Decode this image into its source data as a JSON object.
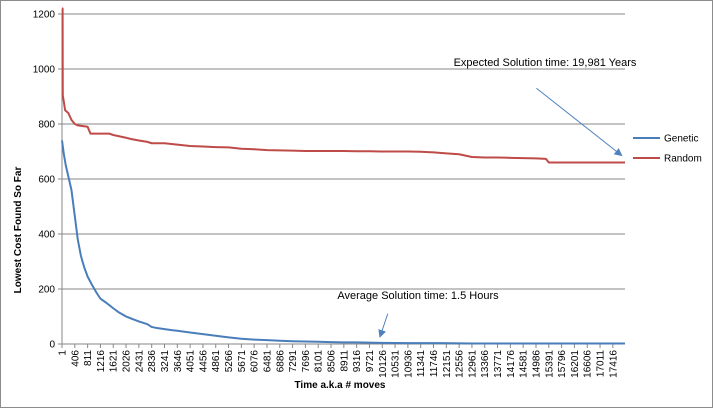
{
  "chart_data": {
    "type": "line",
    "title": "",
    "xlabel": "Time a.k.a # moves",
    "ylabel": "Lowest Cost Found So Far",
    "ylim": [
      0,
      1200
    ],
    "xlim": [
      1,
      17800
    ],
    "grid": true,
    "legend_position": "right",
    "y_ticks": [
      "0",
      "200",
      "400",
      "600",
      "800",
      "1000",
      "1200"
    ],
    "x_ticks": [
      "1",
      "406",
      "811",
      "1216",
      "1621",
      "2026",
      "2431",
      "2836",
      "3241",
      "3646",
      "4051",
      "4456",
      "4861",
      "5266",
      "5671",
      "6076",
      "6481",
      "6886",
      "7291",
      "7696",
      "8101",
      "8506",
      "8911",
      "9316",
      "9721",
      "10126",
      "10531",
      "10936",
      "11341",
      "11746",
      "12151",
      "12556",
      "12961",
      "13366",
      "13771",
      "14176",
      "14581",
      "14986",
      "15391",
      "15796",
      "16201",
      "16606",
      "17011",
      "17416"
    ],
    "series": [
      {
        "name": "Genetic",
        "color": "#4a7ebb",
        "points": [
          [
            1,
            740
          ],
          [
            60,
            690
          ],
          [
            120,
            650
          ],
          [
            200,
            610
          ],
          [
            300,
            560
          ],
          [
            400,
            470
          ],
          [
            500,
            380
          ],
          [
            600,
            320
          ],
          [
            700,
            280
          ],
          [
            811,
            245
          ],
          [
            950,
            215
          ],
          [
            1100,
            185
          ],
          [
            1216,
            165
          ],
          [
            1400,
            150
          ],
          [
            1621,
            130
          ],
          [
            1800,
            115
          ],
          [
            2026,
            100
          ],
          [
            2200,
            92
          ],
          [
            2431,
            82
          ],
          [
            2700,
            72
          ],
          [
            2836,
            62
          ],
          [
            3000,
            58
          ],
          [
            3241,
            54
          ],
          [
            3500,
            50
          ],
          [
            3646,
            48
          ],
          [
            4051,
            42
          ],
          [
            4456,
            36
          ],
          [
            4861,
            30
          ],
          [
            5266,
            24
          ],
          [
            5671,
            19
          ],
          [
            6076,
            16
          ],
          [
            6481,
            14
          ],
          [
            6886,
            12
          ],
          [
            7291,
            10
          ],
          [
            7696,
            9
          ],
          [
            8101,
            8
          ],
          [
            8506,
            7
          ],
          [
            8911,
            6
          ],
          [
            9316,
            6
          ],
          [
            9721,
            5
          ],
          [
            10126,
            4
          ],
          [
            11000,
            3
          ],
          [
            12000,
            3
          ],
          [
            13000,
            2
          ],
          [
            14000,
            2
          ],
          [
            15000,
            2
          ],
          [
            16000,
            2
          ],
          [
            17000,
            2
          ],
          [
            17800,
            2
          ]
        ]
      },
      {
        "name": "Random",
        "color": "#be4b48",
        "points": [
          [
            1,
            1220
          ],
          [
            20,
            1220
          ],
          [
            25,
            905
          ],
          [
            60,
            880
          ],
          [
            100,
            850
          ],
          [
            200,
            840
          ],
          [
            300,
            815
          ],
          [
            406,
            800
          ],
          [
            500,
            795
          ],
          [
            811,
            790
          ],
          [
            900,
            765
          ],
          [
            1216,
            765
          ],
          [
            1500,
            765
          ],
          [
            1621,
            760
          ],
          [
            2026,
            750
          ],
          [
            2200,
            745
          ],
          [
            2431,
            740
          ],
          [
            2700,
            735
          ],
          [
            2836,
            730
          ],
          [
            3241,
            730
          ],
          [
            3646,
            725
          ],
          [
            4051,
            720
          ],
          [
            4456,
            718
          ],
          [
            4861,
            716
          ],
          [
            5266,
            715
          ],
          [
            5671,
            710
          ],
          [
            6076,
            708
          ],
          [
            6481,
            705
          ],
          [
            6886,
            704
          ],
          [
            7291,
            703
          ],
          [
            7696,
            702
          ],
          [
            8101,
            702
          ],
          [
            8506,
            702
          ],
          [
            8911,
            702
          ],
          [
            9316,
            701
          ],
          [
            9721,
            701
          ],
          [
            10126,
            700
          ],
          [
            10531,
            700
          ],
          [
            10936,
            700
          ],
          [
            11341,
            699
          ],
          [
            11746,
            697
          ],
          [
            12151,
            693
          ],
          [
            12556,
            690
          ],
          [
            12961,
            680
          ],
          [
            13366,
            678
          ],
          [
            13771,
            678
          ],
          [
            14176,
            677
          ],
          [
            14581,
            676
          ],
          [
            14986,
            675
          ],
          [
            15300,
            673
          ],
          [
            15391,
            660
          ],
          [
            15796,
            660
          ],
          [
            16201,
            660
          ],
          [
            16606,
            660
          ],
          [
            17011,
            660
          ],
          [
            17416,
            660
          ],
          [
            17800,
            660
          ]
        ]
      }
    ],
    "annotations": [
      {
        "text": "Expected Solution time: 19,981 Years",
        "arrow_from": [
          15000,
          930
        ],
        "arrow_to": [
          17700,
          685
        ]
      },
      {
        "text": "Average Solution time: 1.5 Hours",
        "arrow_from": [
          10300,
          110
        ],
        "arrow_to": [
          10050,
          25
        ]
      }
    ]
  }
}
